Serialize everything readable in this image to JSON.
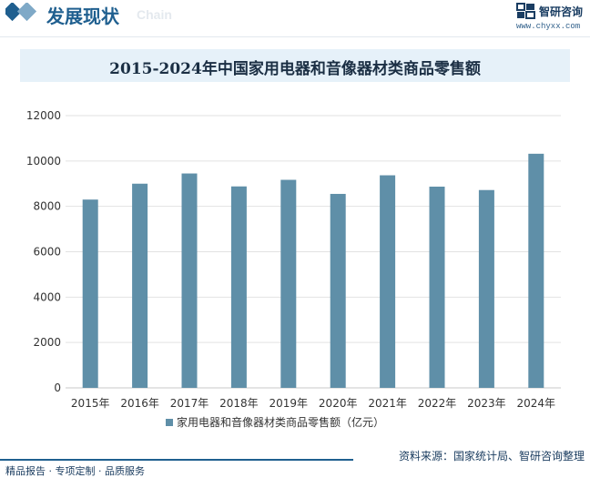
{
  "header": {
    "title": "发展现状",
    "subtitle": "Chain",
    "brand_name": "智研咨询",
    "brand_url": "www.chyxx.com"
  },
  "footer": {
    "left": "精品报告 · 专项定制 · 品质服务",
    "source": "资料来源：国家统计局、智研咨询整理"
  },
  "colors": {
    "bar": "#5f8fa8",
    "brand": "#1f5f8f"
  },
  "chart_data": {
    "type": "bar",
    "title": "2015-2024年中国家用电器和音像器材类商品零售额",
    "categories": [
      "2015年",
      "2016年",
      "2017年",
      "2018年",
      "2019年",
      "2020年",
      "2021年",
      "2022年",
      "2023年",
      "2024年"
    ],
    "series": [
      {
        "name": "家用电器和音像器材类商品零售额（亿元）",
        "values": [
          8300,
          9000,
          9450,
          8880,
          9170,
          8550,
          9370,
          8870,
          8720,
          10320
        ]
      }
    ],
    "ylim": [
      0,
      12000
    ],
    "yticks": [
      "0",
      "2000",
      "4000",
      "6000",
      "8000",
      "10000",
      "12000"
    ],
    "grid": true,
    "legend": "bottom"
  }
}
